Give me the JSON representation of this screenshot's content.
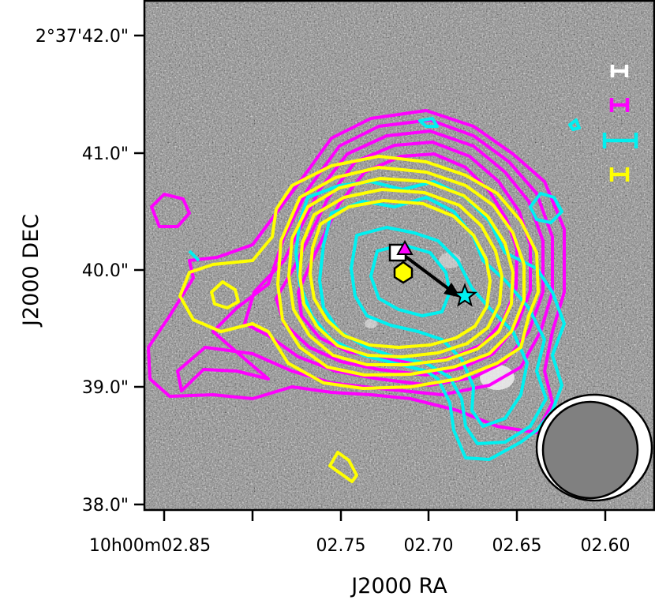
{
  "figure": {
    "xlabel": "J2000 RA",
    "ylabel": "J2000 DEC",
    "x_ticks": [
      "10h00m02.85",
      "02.75",
      "02.70",
      "02.65",
      "02.60"
    ],
    "y_ticks": [
      "2°37'42.0\"",
      "41.0\"",
      "40.0\"",
      "39.0\"",
      "38.0\""
    ],
    "contour_colors": {
      "magenta": "#ff00ff",
      "yellow": "#ffff00",
      "cyan": "#00f0f0"
    },
    "markers": [
      {
        "shape": "square",
        "fill": "#ffffff"
      },
      {
        "shape": "triangle",
        "fill": "#ff00ff"
      },
      {
        "shape": "hexagon",
        "fill": "#ffff00"
      },
      {
        "shape": "star",
        "fill": "#00f0f0"
      }
    ],
    "error_bar_colors": [
      "#ffffff",
      "#ff00ff",
      "#00f0f0",
      "#ffff00"
    ],
    "arrow": {
      "from": "triangle",
      "to": "star"
    },
    "beam": {
      "fill": "#808080",
      "ring": "#ffffff"
    }
  }
}
